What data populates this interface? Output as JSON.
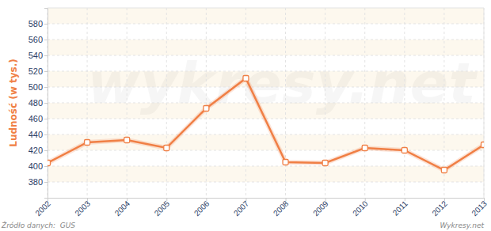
{
  "chart_data": {
    "type": "line",
    "y_label": "Ludność (w tys.)",
    "x": [
      2002,
      2003,
      2004,
      2005,
      2006,
      2007,
      2008,
      2009,
      2010,
      2011,
      2012,
      2013
    ],
    "values": [
      404,
      430,
      433,
      423,
      473,
      511,
      405,
      404,
      423,
      420,
      395,
      427
    ],
    "color": "#f07f45",
    "marker": "square",
    "xlim": [
      2002,
      2013
    ],
    "xticks": [
      2002,
      2003,
      2004,
      2005,
      2006,
      2007,
      2008,
      2009,
      2010,
      2011,
      2012,
      2013
    ],
    "ylim": [
      360,
      600
    ],
    "yticks": [
      380,
      400,
      420,
      440,
      460,
      480,
      500,
      520,
      540,
      560,
      580
    ],
    "grid": true,
    "annotations": [
      "Źródło danych:  GUS",
      "Wykresy.net",
      "wykresy.net"
    ]
  }
}
